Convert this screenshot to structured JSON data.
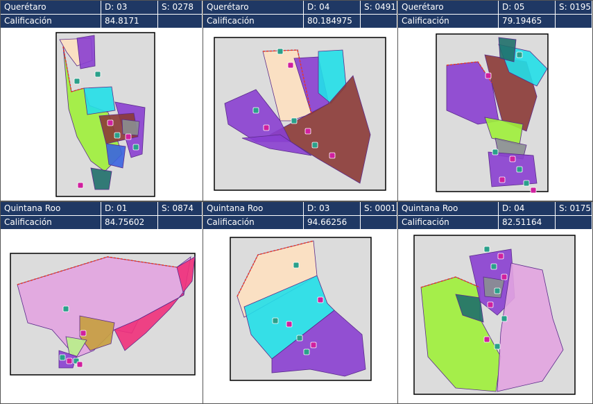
{
  "panels": [
    {
      "state": "Querétaro",
      "district": "D: 03",
      "section": "S: 0278",
      "label": "Calificación",
      "score": 84.8171
    },
    {
      "state": "Querétaro",
      "district": "D: 04",
      "section": "S: 0491",
      "label": "Calificación",
      "score": 80.184975
    },
    {
      "state": "Querétaro",
      "district": "D: 05",
      "section": "S: 0195",
      "label": "Calificación",
      "score": 79.19465
    },
    {
      "state": "Quintana Roo",
      "district": "D: 01",
      "section": "S: 0874",
      "label": "Calificación",
      "score": 84.75602
    },
    {
      "state": "Quintana Roo",
      "district": "D: 03",
      "section": "S: 0001",
      "label": "Calificación",
      "score": 94.66256
    },
    {
      "state": "Quintana Roo",
      "district": "D: 04",
      "section": "S: 0175",
      "label": "Calificación",
      "score": 82.51164
    }
  ]
}
